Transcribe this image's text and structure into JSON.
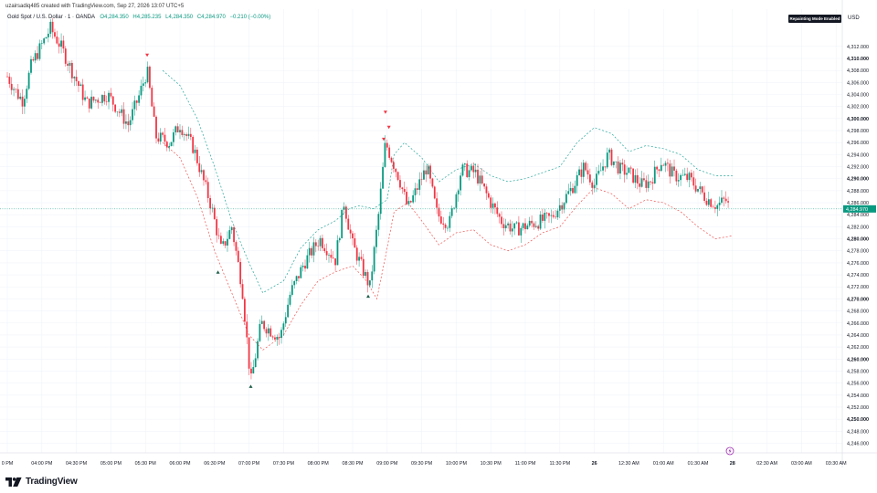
{
  "header": {
    "credit": "uzairsadiq485 created with TradingView.com, Sep 27, 2026 13:07 UTC+5",
    "symbol": "Gold Spot / U.S. Dollar · 1 · OANDA",
    "open": "O4,284.350",
    "high": "H4,285.235",
    "low": "L4,284.350",
    "close": "C4,284.970",
    "change": "−0.210 (−0.00%)",
    "repaint_badge": "Repainting Mode Enabled",
    "currency": "USD"
  },
  "brand": {
    "name": "TradingView",
    "logo_icon": "tradingview-logo-icon"
  },
  "colors": {
    "up": "#089981",
    "down": "#f23645",
    "upper_band": "#26a69a",
    "lower_band": "#ef5350",
    "price_line": "#089981",
    "grid": "#f0f3fa",
    "background": "#ffffff"
  },
  "chart_data": {
    "type": "candlestick",
    "title": "",
    "xlabel": "",
    "ylabel": "",
    "ylim": [
      4244.4,
      4318.2
    ],
    "grid": true,
    "y_ticks": [
      "4,312.000",
      "4,310.000",
      "4,308.000",
      "4,306.000",
      "4,304.000",
      "4,302.000",
      "4,300.000",
      "4,298.000",
      "4,296.000",
      "4,294.000",
      "4,292.000",
      "4,290.000",
      "4,288.000",
      "4,286.000",
      "4,284.000",
      "4,282.000",
      "4,280.000",
      "4,278.000",
      "4,276.000",
      "4,274.000",
      "4,272.000",
      "4,270.000",
      "4,268.000",
      "4,266.000",
      "4,264.000",
      "4,262.000",
      "4,260.000",
      "4,258.000",
      "4,256.000",
      "4,254.000",
      "4,252.000",
      "4,250.000",
      "4,248.000",
      "4,246.000"
    ],
    "y_tick_values": [
      4312,
      4310,
      4308,
      4306,
      4304,
      4302,
      4300,
      4298,
      4296,
      4294,
      4292,
      4290,
      4288,
      4286,
      4284,
      4282,
      4280,
      4278,
      4276,
      4274,
      4272,
      4270,
      4268,
      4266,
      4264,
      4262,
      4260,
      4258,
      4256,
      4254,
      4252,
      4250,
      4248,
      4246
    ],
    "y_tick_bold": [
      "4,310.000",
      "4,300.000",
      "4,290.000",
      "4,280.000",
      "4,270.000",
      "4,260.000",
      "4,250.000"
    ],
    "x_ticks": [
      {
        "label": "0 PM",
        "slot": 0.0
      },
      {
        "label": "04:00 PM",
        "slot": 1.0
      },
      {
        "label": "04:30 PM",
        "slot": 2.0
      },
      {
        "label": "05:00 PM",
        "slot": 3.0
      },
      {
        "label": "05:30 PM",
        "slot": 4.0
      },
      {
        "label": "06:00 PM",
        "slot": 5.0
      },
      {
        "label": "06:30 PM",
        "slot": 6.0
      },
      {
        "label": "07:00 PM",
        "slot": 7.0
      },
      {
        "label": "07:30 PM",
        "slot": 8.0
      },
      {
        "label": "08:00 PM",
        "slot": 9.0
      },
      {
        "label": "08:30 PM",
        "slot": 10.0
      },
      {
        "label": "09:00 PM",
        "slot": 11.0
      },
      {
        "label": "09:30 PM",
        "slot": 12.0
      },
      {
        "label": "10:00 PM",
        "slot": 13.0
      },
      {
        "label": "10:30 PM",
        "slot": 14.0
      },
      {
        "label": "11:00 PM",
        "slot": 15.0
      },
      {
        "label": "11:30 PM",
        "slot": 16.0
      },
      {
        "label": "26",
        "slot": 17.0
      },
      {
        "label": "12:30 AM",
        "slot": 18.0
      },
      {
        "label": "01:00 AM",
        "slot": 19.0
      },
      {
        "label": "01:30 AM",
        "slot": 20.0
      },
      {
        "label": "28",
        "slot": 21.0
      },
      {
        "label": "02:30 AM",
        "slot": 22.0
      },
      {
        "label": "03:00 AM",
        "slot": 23.0
      },
      {
        "label": "03:30 AM",
        "slot": 24.0
      }
    ],
    "last_price": "4,284.970",
    "last_price_value": 4284.97,
    "price_anchors": [
      [
        0.0,
        4307.0
      ],
      [
        0.3,
        4304.0
      ],
      [
        0.45,
        4303.0
      ],
      [
        0.7,
        4309.0
      ],
      [
        1.25,
        4315.0
      ],
      [
        1.55,
        4312.0
      ],
      [
        2.3,
        4302.5
      ],
      [
        2.9,
        4304.0
      ],
      [
        3.5,
        4299.0
      ],
      [
        3.8,
        4303.5
      ],
      [
        4.05,
        4308.0
      ],
      [
        4.3,
        4297.0
      ],
      [
        4.7,
        4296.0
      ],
      [
        5.0,
        4299.0
      ],
      [
        5.4,
        4295.0
      ],
      [
        5.9,
        4285.5
      ],
      [
        6.2,
        4278.0
      ],
      [
        6.5,
        4282.0
      ],
      [
        6.8,
        4272.0
      ],
      [
        7.05,
        4256.0
      ],
      [
        7.35,
        4266.0
      ],
      [
        7.9,
        4263.5
      ],
      [
        8.2,
        4271.0
      ],
      [
        8.6,
        4276.0
      ],
      [
        9.05,
        4280.0
      ],
      [
        9.5,
        4276.5
      ],
      [
        9.75,
        4286.0
      ],
      [
        10.0,
        4279.0
      ],
      [
        10.5,
        4272.0
      ],
      [
        10.75,
        4284.0
      ],
      [
        10.95,
        4296.0
      ],
      [
        11.35,
        4290.0
      ],
      [
        11.6,
        4285.0
      ],
      [
        12.15,
        4292.0
      ],
      [
        12.45,
        4284.0
      ],
      [
        12.8,
        4282.5
      ],
      [
        13.15,
        4291.5
      ],
      [
        13.55,
        4291.0
      ],
      [
        14.0,
        4286.0
      ],
      [
        14.3,
        4283.0
      ],
      [
        14.7,
        4281.5
      ],
      [
        15.2,
        4282.5
      ],
      [
        15.75,
        4283.5
      ],
      [
        16.3,
        4288.0
      ],
      [
        16.7,
        4292.0
      ],
      [
        17.0,
        4289.0
      ],
      [
        17.4,
        4294.0
      ],
      [
        17.75,
        4291.5
      ],
      [
        18.0,
        4291.0
      ],
      [
        18.35,
        4289.0
      ],
      [
        18.6,
        4289.5
      ],
      [
        18.95,
        4293.0
      ],
      [
        19.3,
        4290.5
      ],
      [
        19.75,
        4290.0
      ],
      [
        20.2,
        4287.0
      ],
      [
        20.55,
        4285.5
      ],
      [
        20.8,
        4286.5
      ],
      [
        20.92,
        4285.0
      ]
    ],
    "upper_band": [
      [
        4.5,
        4308.0
      ],
      [
        5.0,
        4305.5
      ],
      [
        5.5,
        4300.0
      ],
      [
        6.0,
        4292.0
      ],
      [
        6.5,
        4283.0
      ],
      [
        7.0,
        4276.0
      ],
      [
        7.4,
        4271.0
      ],
      [
        8.0,
        4273.0
      ],
      [
        8.5,
        4278.5
      ],
      [
        9.0,
        4281.5
      ],
      [
        9.5,
        4283.0
      ],
      [
        9.9,
        4285.0
      ],
      [
        10.2,
        4285.5
      ],
      [
        10.6,
        4285.0
      ],
      [
        11.0,
        4286.5
      ],
      [
        11.2,
        4294.0
      ],
      [
        11.5,
        4296.0
      ],
      [
        12.0,
        4293.5
      ],
      [
        12.5,
        4289.5
      ],
      [
        13.0,
        4291.5
      ],
      [
        13.5,
        4292.5
      ],
      [
        14.0,
        4290.5
      ],
      [
        14.5,
        4289.5
      ],
      [
        15.0,
        4290.0
      ],
      [
        15.5,
        4291.0
      ],
      [
        16.0,
        4292.0
      ],
      [
        16.5,
        4296.0
      ],
      [
        17.0,
        4298.5
      ],
      [
        17.5,
        4297.5
      ],
      [
        18.0,
        4294.5
      ],
      [
        18.5,
        4295.5
      ],
      [
        19.0,
        4295.0
      ],
      [
        19.5,
        4294.0
      ],
      [
        20.0,
        4291.5
      ],
      [
        20.5,
        4290.5
      ],
      [
        21.0,
        4290.5
      ]
    ],
    "lower_band": [
      [
        4.5,
        4296.0
      ],
      [
        5.0,
        4293.5
      ],
      [
        5.5,
        4287.0
      ],
      [
        6.0,
        4278.0
      ],
      [
        6.5,
        4271.0
      ],
      [
        7.0,
        4264.0
      ],
      [
        7.4,
        4261.5
      ],
      [
        8.0,
        4264.0
      ],
      [
        8.5,
        4269.0
      ],
      [
        9.0,
        4273.0
      ],
      [
        9.5,
        4274.5
      ],
      [
        10.0,
        4275.5
      ],
      [
        10.4,
        4273.0
      ],
      [
        10.7,
        4270.0
      ],
      [
        10.95,
        4277.0
      ],
      [
        11.2,
        4284.5
      ],
      [
        11.6,
        4286.0
      ],
      [
        12.0,
        4283.0
      ],
      [
        12.5,
        4279.0
      ],
      [
        13.0,
        4281.0
      ],
      [
        13.5,
        4281.5
      ],
      [
        14.0,
        4279.0
      ],
      [
        14.5,
        4278.0
      ],
      [
        15.0,
        4279.0
      ],
      [
        15.5,
        4281.0
      ],
      [
        16.0,
        4282.0
      ],
      [
        16.5,
        4285.5
      ],
      [
        17.0,
        4288.5
      ],
      [
        17.5,
        4287.5
      ],
      [
        18.0,
        4285.0
      ],
      [
        18.5,
        4286.5
      ],
      [
        19.0,
        4286.0
      ],
      [
        19.5,
        4284.5
      ],
      [
        20.0,
        4282.0
      ],
      [
        20.5,
        4280.0
      ],
      [
        21.0,
        4280.5
      ]
    ],
    "sell_markers": [
      [
        4.05,
        4310.5
      ],
      [
        10.95,
        4301.0
      ],
      [
        11.05,
        4298.5
      ],
      [
        10.9,
        4296.5
      ]
    ],
    "buy_markers": [
      [
        7.05,
        4255.5
      ],
      [
        10.45,
        4270.5
      ],
      [
        6.1,
        4274.5
      ]
    ]
  },
  "footer": {
    "event_icon": "lightning-icon"
  }
}
